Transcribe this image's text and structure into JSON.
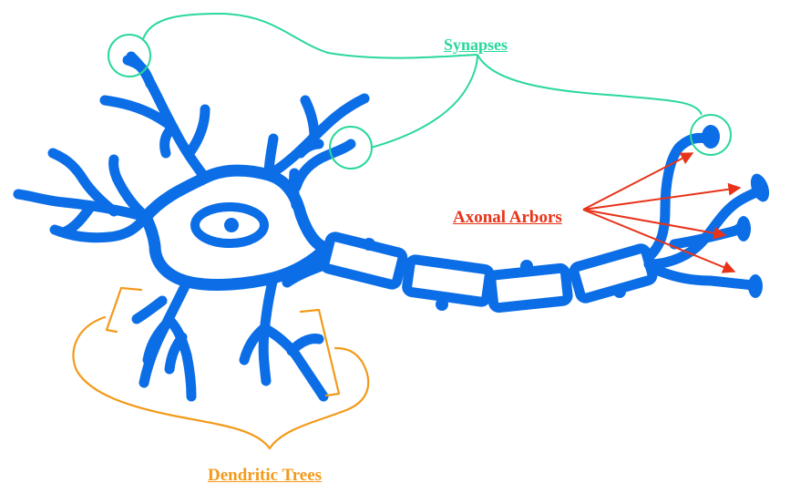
{
  "labels": {
    "synapses": "Synapses",
    "axonal_arbors": "Axonal Arbors",
    "dendritic_trees": "Dendritic Trees"
  },
  "colors": {
    "neuron": "#0b6ee6",
    "synapses": "#2ad89a",
    "axonal_arbors": "#e8331a",
    "dendritic_trees": "#f29a1a",
    "background": "#ffffff"
  }
}
